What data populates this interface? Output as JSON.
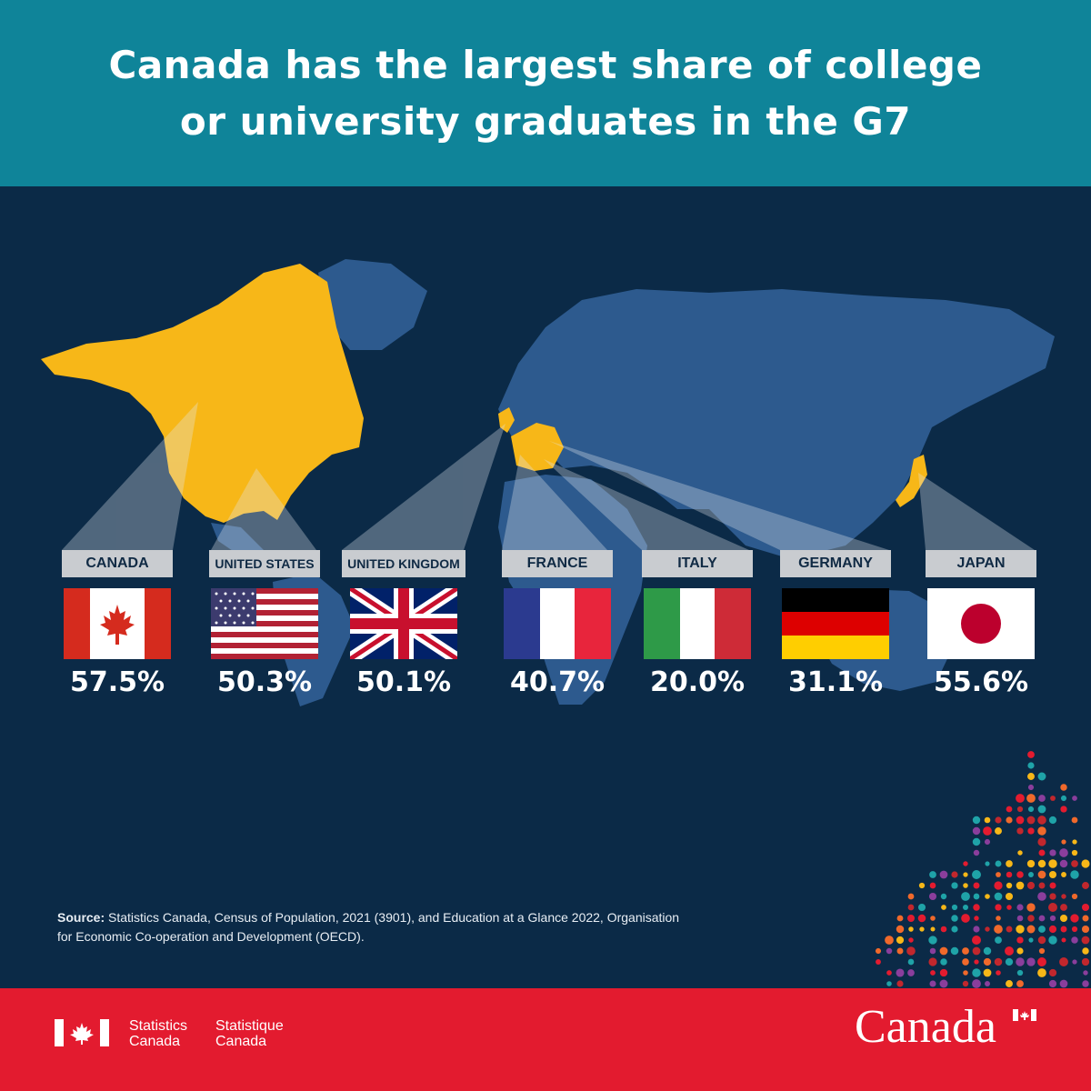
{
  "header": {
    "title_line1": "Canada has the largest share of college",
    "title_line2": "or university graduates in the G7"
  },
  "countries": [
    {
      "name": "CANADA",
      "value": "57.5%"
    },
    {
      "name": "UNITED STATES",
      "value": "50.3%"
    },
    {
      "name": "UNITED KINGDOM",
      "value": "50.1%"
    },
    {
      "name": "FRANCE",
      "value": "40.7%"
    },
    {
      "name": "ITALY",
      "value": "20.0%"
    },
    {
      "name": "GERMANY",
      "value": "31.1%"
    },
    {
      "name": "JAPAN",
      "value": "55.6%"
    }
  ],
  "source": {
    "label": "Source:",
    "text": " Statistics Canada, Census of Population, 2021 (3901), and Education at a Glance 2022, Organisation for Economic Co-operation and Development (OECD)."
  },
  "footer": {
    "statcan_en_line1": "Statistics",
    "statcan_en_line2": "Canada",
    "statcan_fr_line1": "Statistique",
    "statcan_fr_line2": "Canada",
    "wordmark": "Canada"
  },
  "colors": {
    "header_bg": "#0f8499",
    "background": "#0b2a47",
    "land": "#2d5a8e",
    "highlight": "#f7b718",
    "label_bg": "#c9ccd0",
    "footer_bg": "#e31b2f"
  }
}
